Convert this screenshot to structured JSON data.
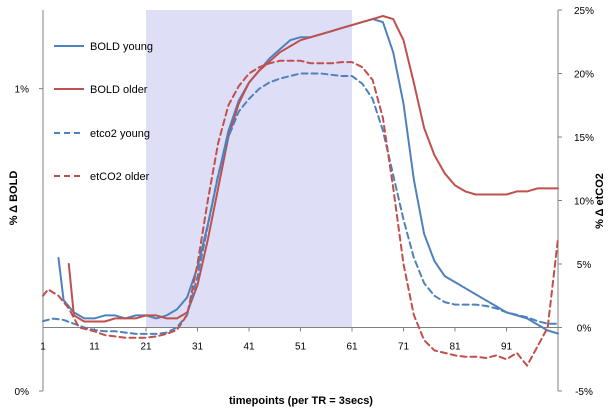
{
  "chart_data": {
    "type": "line",
    "xlabel": "timepoints (per TR = 3secs)",
    "ylabel_left": "% Δ BOLD",
    "ylabel_right": "% Δ etCO2",
    "x_ticks": [
      "1",
      "11",
      "21",
      "31",
      "41",
      "51",
      "61",
      "71",
      "81",
      "91"
    ],
    "x_tick_values": [
      1,
      11,
      21,
      31,
      41,
      51,
      61,
      71,
      81,
      91
    ],
    "xlim": [
      1,
      101
    ],
    "y_left_ticks": [
      "0%",
      "1%"
    ],
    "y_left_tick_values": [
      0,
      1
    ],
    "ylim_left": [
      0,
      1.26
    ],
    "y_right_ticks": [
      "-5%",
      "0%",
      "5%",
      "10%",
      "15%",
      "20%",
      "25%"
    ],
    "y_right_tick_values": [
      -5,
      0,
      5,
      10,
      15,
      20,
      25
    ],
    "ylim_right": [
      -5,
      25
    ],
    "shaded_region": {
      "x_start": 21,
      "x_end": 61,
      "color": "#dedff7"
    },
    "legend_position": "top-left",
    "series": [
      {
        "name": "BOLD young",
        "axis": "left",
        "style": "solid",
        "color": "#4f81bd",
        "x": [
          4,
          5,
          7,
          9,
          11,
          13,
          15,
          17,
          19,
          21,
          23,
          25,
          27,
          29,
          31,
          33,
          35,
          37,
          39,
          41,
          43,
          45,
          47,
          49,
          51,
          53,
          55,
          57,
          59,
          61,
          63,
          65,
          67,
          69,
          71,
          73,
          75,
          77,
          79,
          81,
          83,
          85,
          87,
          89,
          91,
          93,
          95,
          97,
          99,
          101
        ],
        "y": [
          0.44,
          0.3,
          0.26,
          0.24,
          0.24,
          0.25,
          0.25,
          0.24,
          0.25,
          0.25,
          0.24,
          0.25,
          0.27,
          0.31,
          0.41,
          0.55,
          0.71,
          0.86,
          0.96,
          1.02,
          1.06,
          1.1,
          1.13,
          1.16,
          1.17,
          1.17,
          1.18,
          1.19,
          1.2,
          1.21,
          1.22,
          1.23,
          1.22,
          1.12,
          0.95,
          0.7,
          0.52,
          0.43,
          0.38,
          0.36,
          0.34,
          0.32,
          0.3,
          0.28,
          0.26,
          0.25,
          0.24,
          0.22,
          0.2,
          0.19
        ]
      },
      {
        "name": "BOLD older",
        "axis": "left",
        "style": "solid",
        "color": "#c0504d",
        "x": [
          6,
          7,
          9,
          11,
          13,
          15,
          17,
          19,
          21,
          23,
          25,
          27,
          29,
          31,
          33,
          35,
          37,
          39,
          41,
          43,
          45,
          47,
          49,
          51,
          53,
          55,
          57,
          59,
          61,
          63,
          65,
          67,
          69,
          71,
          73,
          75,
          77,
          79,
          81,
          83,
          85,
          87,
          89,
          91,
          93,
          95,
          97,
          99,
          101
        ],
        "y": [
          0.42,
          0.25,
          0.23,
          0.23,
          0.23,
          0.24,
          0.24,
          0.24,
          0.25,
          0.25,
          0.24,
          0.24,
          0.26,
          0.35,
          0.5,
          0.67,
          0.84,
          0.95,
          1.02,
          1.06,
          1.09,
          1.12,
          1.14,
          1.16,
          1.17,
          1.18,
          1.19,
          1.2,
          1.21,
          1.22,
          1.23,
          1.24,
          1.23,
          1.16,
          1.02,
          0.87,
          0.78,
          0.72,
          0.68,
          0.66,
          0.65,
          0.65,
          0.65,
          0.65,
          0.66,
          0.66,
          0.67,
          0.67,
          0.67
        ]
      },
      {
        "name": "etco2 young",
        "axis": "right",
        "style": "dashed",
        "color": "#4f81bd",
        "x": [
          1,
          3,
          5,
          7,
          9,
          11,
          13,
          15,
          17,
          19,
          21,
          23,
          25,
          27,
          29,
          31,
          33,
          35,
          37,
          39,
          41,
          43,
          45,
          47,
          49,
          51,
          53,
          55,
          57,
          59,
          61,
          63,
          65,
          67,
          69,
          71,
          73,
          75,
          77,
          79,
          81,
          83,
          85,
          87,
          89,
          91,
          93,
          95,
          97,
          99,
          101
        ],
        "y": [
          0.5,
          0.7,
          0.6,
          0.3,
          0.0,
          -0.2,
          -0.3,
          -0.3,
          -0.4,
          -0.5,
          -0.5,
          -0.5,
          -0.4,
          0.0,
          1.0,
          4.0,
          8.0,
          12.0,
          15.0,
          17.0,
          18.0,
          18.8,
          19.3,
          19.6,
          19.8,
          20.0,
          20.0,
          20.0,
          19.9,
          19.8,
          19.8,
          19.2,
          18.0,
          15.5,
          12.0,
          8.5,
          5.5,
          3.5,
          2.5,
          2.0,
          1.8,
          1.8,
          1.8,
          1.7,
          1.5,
          1.2,
          1.0,
          0.8,
          0.5,
          0.3,
          0.3
        ]
      },
      {
        "name": "etCO2 older",
        "axis": "right",
        "style": "dashed",
        "color": "#c0504d",
        "x": [
          1,
          2,
          4,
          6,
          8,
          11,
          13,
          15,
          17,
          19,
          21,
          23,
          25,
          27,
          29,
          31,
          33,
          35,
          37,
          39,
          41,
          43,
          45,
          47,
          49,
          51,
          53,
          55,
          57,
          59,
          61,
          63,
          65,
          67,
          69,
          71,
          73,
          75,
          77,
          79,
          81,
          83,
          85,
          87,
          89,
          91,
          93,
          95,
          97,
          99,
          101
        ],
        "y": [
          2.5,
          3.0,
          2.5,
          1.5,
          0.0,
          -0.3,
          -0.6,
          -0.7,
          -0.8,
          -0.8,
          -0.8,
          -0.7,
          -0.5,
          -0.2,
          1.0,
          5.0,
          10.0,
          14.5,
          17.5,
          19.0,
          20.0,
          20.5,
          20.8,
          21.0,
          21.0,
          21.0,
          20.8,
          20.8,
          20.8,
          20.9,
          20.9,
          20.5,
          19.5,
          16.5,
          11.0,
          5.0,
          1.0,
          -1.0,
          -1.8,
          -2.0,
          -2.2,
          -2.3,
          -2.3,
          -2.4,
          -2.2,
          -2.5,
          -2.0,
          -3.0,
          -1.5,
          0.0,
          7.0
        ]
      }
    ]
  }
}
